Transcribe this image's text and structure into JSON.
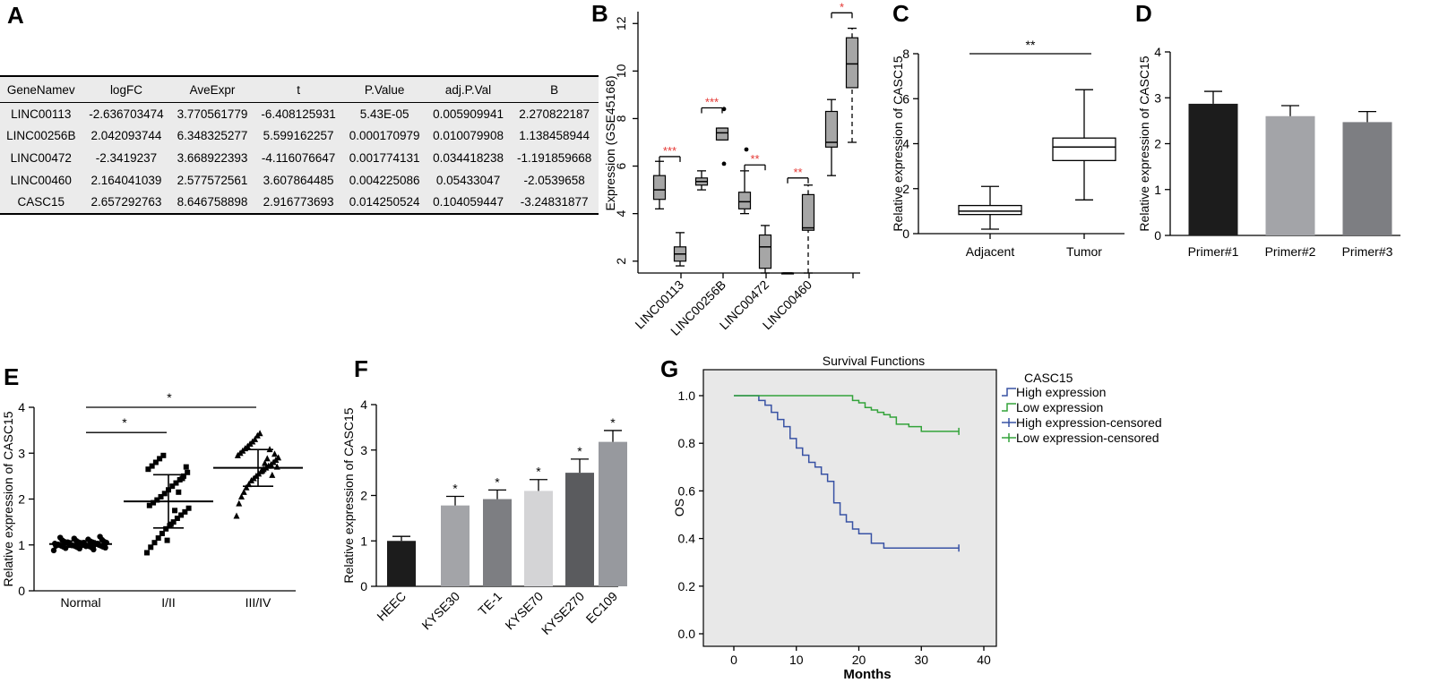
{
  "panel_letters": [
    "A",
    "B",
    "C",
    "D",
    "E",
    "F",
    "G"
  ],
  "chart_data": [
    {
      "id": "A",
      "type": "table",
      "columns": [
        "GeneNamev",
        "logFC",
        "AveExpr",
        "t",
        "P.Value",
        "adj.P.Val",
        "B"
      ],
      "rows": [
        [
          "LINC00113",
          "-2.636703474",
          "3.770561779",
          "-6.408125931",
          "5.43E-05",
          "0.005909941",
          "2.270822187"
        ],
        [
          "LINC00256B",
          "2.042093744",
          "6.348325277",
          "5.599162257",
          "0.000170979",
          "0.010079908",
          "1.138458944"
        ],
        [
          "LINC00472",
          "-2.3419237",
          "3.668922393",
          "-4.116076647",
          "0.001774131",
          "0.034418238",
          "-1.191859668"
        ],
        [
          "LINC00460",
          "2.164041039",
          "2.577572561",
          "3.607864485",
          "0.004225086",
          "0.05433047",
          "-2.0539658"
        ],
        [
          "CASC15",
          "2.657292763",
          "8.646758898",
          "2.916773693",
          "0.014250524",
          "0.104059447",
          "-3.24831877"
        ]
      ]
    },
    {
      "id": "B",
      "type": "box",
      "ylabel": "Expression (GSE45168)",
      "ylim": [
        1.5,
        12.5
      ],
      "yticks": [
        2,
        4,
        6,
        8,
        10,
        12
      ],
      "categories": [
        "LINC00113",
        "LINC00256B",
        "LINC00472",
        "LINC00460",
        ""
      ],
      "boxes": [
        {
          "group": 0,
          "whisker_low": 4.2,
          "q1": 4.6,
          "median": 5.0,
          "q3": 5.6,
          "whisker_high": 6.2
        },
        {
          "group": 0,
          "whisker_low": 1.8,
          "q1": 2.0,
          "median": 2.3,
          "q3": 2.6,
          "whisker_high": 3.2
        },
        {
          "group": 1,
          "whisker_low": 5.0,
          "q1": 5.2,
          "median": 5.35,
          "q3": 5.5,
          "whisker_high": 5.8
        },
        {
          "group": 1,
          "whisker_low": 7.1,
          "q1": 7.1,
          "median": 7.4,
          "q3": 7.6,
          "whisker_high": 7.6,
          "outliers": [
            6.1,
            8.4
          ]
        },
        {
          "group": 2,
          "whisker_low": 4.0,
          "q1": 4.2,
          "median": 4.5,
          "q3": 4.9,
          "whisker_high": 5.8,
          "outliers": [
            6.7
          ]
        },
        {
          "group": 2,
          "whisker_low": 1.5,
          "q1": 1.7,
          "median": 2.6,
          "q3": 3.1,
          "whisker_high": 3.5
        },
        {
          "group": 3,
          "whisker_low": 1.5,
          "q1": 1.5,
          "median": 1.5,
          "q3": 1.5,
          "whisker_high": 1.5
        },
        {
          "group": 3,
          "whisker_low": 1.5,
          "q1": 3.3,
          "median": 3.4,
          "q3": 4.8,
          "whisker_high": 5.2,
          "dashed": true
        },
        {
          "group": 4,
          "whisker_low": 5.6,
          "q1": 6.8,
          "median": 7.0,
          "q3": 8.3,
          "whisker_high": 8.8
        },
        {
          "group": 4,
          "whisker_low": 7.0,
          "q1": 9.3,
          "median": 10.3,
          "q3": 11.4,
          "whisker_high": 11.8,
          "dashed": true
        }
      ],
      "significance": [
        "***",
        "***",
        "**",
        "**",
        "*"
      ],
      "significance_color": "#e53935",
      "box_fill": "#a6a6a6"
    },
    {
      "id": "C",
      "type": "box",
      "ylabel": "Relative expression of CASC15",
      "ylim": [
        0,
        8
      ],
      "yticks": [
        0,
        2,
        4,
        6,
        8
      ],
      "categories": [
        "Adjacent",
        "Tumor"
      ],
      "boxes": [
        {
          "whisker_low": 0.2,
          "q1": 0.85,
          "median": 1.0,
          "q3": 1.25,
          "whisker_high": 2.1
        },
        {
          "whisker_low": 1.5,
          "q1": 3.25,
          "median": 3.85,
          "q3": 4.25,
          "whisker_high": 6.4
        }
      ],
      "significance": "**",
      "box_fill": "#ffffff"
    },
    {
      "id": "D",
      "type": "bar",
      "ylabel": "Relative expression of CASC15",
      "ylim": [
        0,
        4
      ],
      "yticks": [
        0,
        1,
        2,
        3,
        4
      ],
      "categories": [
        "Primer#1",
        "Primer#2",
        "Primer#3"
      ],
      "values": [
        2.87,
        2.6,
        2.47
      ],
      "errors": [
        0.27,
        0.23,
        0.23
      ],
      "colors": [
        "#1c1c1c",
        "#a3a4a8",
        "#7d7e82"
      ]
    },
    {
      "id": "E",
      "type": "scatter",
      "ylabel": "Relative expression of CASC15",
      "ylim": [
        0,
        4
      ],
      "yticks": [
        0,
        1,
        2,
        3,
        4
      ],
      "categories": [
        "Normal",
        "I/II",
        "III/IV"
      ],
      "groups": [
        {
          "mean": 1.02,
          "sd": 0.07,
          "values": [
            0.88,
            0.9,
            0.92,
            0.93,
            0.94,
            0.95,
            0.95,
            0.96,
            0.96,
            0.97,
            0.97,
            0.98,
            0.98,
            0.99,
            0.99,
            1.0,
            1.0,
            1.0,
            1.01,
            1.01,
            1.02,
            1.02,
            1.03,
            1.03,
            1.04,
            1.04,
            1.05,
            1.05,
            1.06,
            1.06,
            1.07,
            1.07,
            1.08,
            1.09,
            1.1,
            1.11,
            1.12,
            1.14,
            1.16,
            1.18,
            0.97,
            0.99,
            1.01,
            1.03,
            1.05,
            1.0,
            0.98,
            1.02,
            1.04,
            1.06
          ]
        },
        {
          "mean": 1.95,
          "sd": 0.58,
          "values": [
            0.83,
            0.95,
            1.05,
            1.15,
            1.25,
            1.35,
            1.42,
            1.5,
            1.58,
            1.65,
            1.72,
            1.8,
            1.86,
            1.92,
            1.98,
            2.05,
            2.12,
            2.2,
            2.28,
            2.35,
            2.42,
            2.5,
            2.58,
            2.65,
            2.72,
            2.8,
            2.88,
            2.95,
            1.1,
            1.45,
            1.75,
            2.15,
            2.45,
            2.7
          ]
        },
        {
          "mean": 2.68,
          "sd": 0.4,
          "values": [
            1.63,
            1.9,
            2.05,
            2.15,
            2.25,
            2.32,
            2.4,
            2.45,
            2.5,
            2.55,
            2.6,
            2.65,
            2.68,
            2.72,
            2.75,
            2.8,
            2.85,
            2.9,
            2.95,
            3.0,
            3.05,
            3.1,
            3.15,
            3.2,
            3.25,
            3.3,
            3.38,
            3.43,
            2.62,
            2.78,
            2.88,
            3.08,
            2.52,
            2.98,
            2.7
          ]
        }
      ],
      "comparisons": [
        {
          "from": 0,
          "to": 1,
          "y": 3.45,
          "label": "*"
        },
        {
          "from": 0,
          "to": 2,
          "y": 4.0,
          "label": "*"
        }
      ]
    },
    {
      "id": "F",
      "type": "bar",
      "ylabel": "Relative expression of CASC15",
      "ylim": [
        0,
        4
      ],
      "yticks": [
        0,
        1,
        2,
        3,
        4
      ],
      "categories": [
        "HEEC",
        "KYSE30",
        "TE-1",
        "KYSE70",
        "KYSE270",
        "EC109"
      ],
      "values": [
        1.0,
        1.78,
        1.92,
        2.1,
        2.5,
        3.18
      ],
      "errors": [
        0.1,
        0.2,
        0.2,
        0.25,
        0.3,
        0.25
      ],
      "significance": [
        "",
        "*",
        "*",
        "*",
        "*",
        "*"
      ],
      "colors": [
        "#1c1c1c",
        "#a3a4a8",
        "#7d7e82",
        "#d4d4d6",
        "#5a5b5e",
        "#97999e"
      ]
    },
    {
      "id": "G",
      "type": "line",
      "title": "Survival Functions",
      "xlabel": "Months",
      "ylabel": "OS",
      "xlim": [
        0,
        40
      ],
      "ylim": [
        0,
        1
      ],
      "xticks": [
        0,
        10,
        20,
        30,
        40
      ],
      "yticks": [
        "0.0",
        "0.2",
        "0.4",
        "0.6",
        "0.8",
        "1.0"
      ],
      "legend_title": "CASC15",
      "legend": [
        "High expression",
        "Low expression",
        "High expression-censored",
        "Low expression-censored"
      ],
      "series": [
        {
          "name": "High expression",
          "color": "#3852a4",
          "x": [
            0,
            4,
            5,
            6,
            7,
            8,
            9,
            10,
            11,
            12,
            13,
            14,
            15,
            16,
            17,
            18,
            19,
            20,
            22,
            24,
            36
          ],
          "y": [
            1.0,
            0.98,
            0.96,
            0.93,
            0.9,
            0.87,
            0.82,
            0.78,
            0.75,
            0.72,
            0.7,
            0.67,
            0.64,
            0.55,
            0.5,
            0.47,
            0.44,
            0.42,
            0.38,
            0.36,
            0.36
          ]
        },
        {
          "name": "Low expression",
          "color": "#33a33a",
          "x": [
            0,
            19,
            20,
            21,
            22,
            23,
            24,
            25,
            26,
            28,
            30,
            36
          ],
          "y": [
            1.0,
            0.98,
            0.97,
            0.95,
            0.94,
            0.93,
            0.92,
            0.91,
            0.88,
            0.87,
            0.85,
            0.85
          ]
        }
      ],
      "plot_background": "#e8e8e8"
    }
  ]
}
